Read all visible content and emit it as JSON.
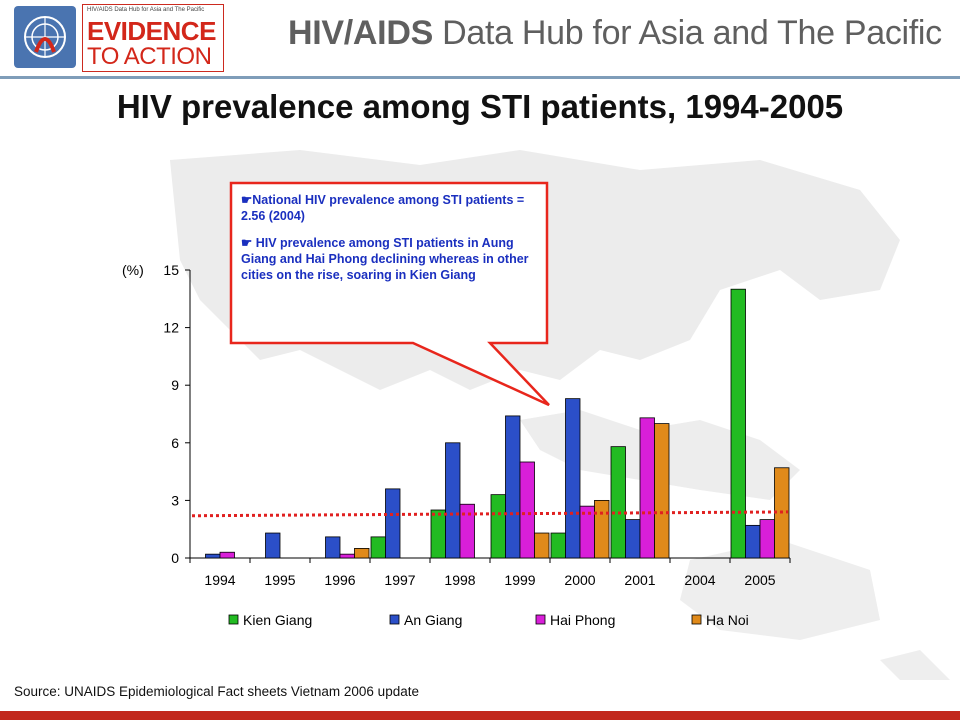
{
  "header": {
    "logo_small_text": "HIV/AIDS Data Hub for Asia and The Pacific",
    "logo_line1": "EVIDENCE",
    "logo_line2": "TO ACTION",
    "hub_bold": "HIV/AIDS",
    "hub_rest": " Data Hub for Asia and The Pacific"
  },
  "slide_title": "HIV prevalence among STI patients, 1994-2005",
  "callout": {
    "bullet_1": "National HIV prevalence among STI patients  = 2.56 (2004)",
    "bullet_2": " HIV prevalence among STI patients in Aung Giang and Hai Phong declining whereas in other cities on the rise, soaring in Kien Giang"
  },
  "source": "Source: UNAIDS Epidemiological Fact sheets Vietnam 2006 update",
  "chart_data": {
    "type": "bar",
    "title": "",
    "xlabel": "",
    "ylabel": "(%)",
    "ylim": [
      0,
      15
    ],
    "yticks": [
      0,
      3,
      6,
      9,
      12,
      15
    ],
    "categories": [
      "1994",
      "1995",
      "1996",
      "1997",
      "1998",
      "1999",
      "2000",
      "2001",
      "2004",
      "2005"
    ],
    "series": [
      {
        "name": "Kien Giang",
        "color": "#22bb22",
        "values": [
          null,
          null,
          null,
          1.1,
          2.5,
          3.3,
          1.3,
          5.8,
          null,
          14.0
        ]
      },
      {
        "name": "An Giang",
        "color": "#2b4fc8",
        "values": [
          0.2,
          1.3,
          1.1,
          3.6,
          6.0,
          7.4,
          8.3,
          2.0,
          null,
          1.7
        ]
      },
      {
        "name": "Hai Phong",
        "color": "#d91fd9",
        "values": [
          0.3,
          null,
          0.2,
          null,
          2.8,
          5.0,
          2.7,
          7.3,
          null,
          2.0
        ]
      },
      {
        "name": "Ha Noi",
        "color": "#e08a1a",
        "values": [
          null,
          null,
          0.5,
          null,
          null,
          1.3,
          3.0,
          7.0,
          null,
          4.7
        ]
      }
    ],
    "reference_line": {
      "from": 2.2,
      "to": 2.4,
      "color": "#e02020",
      "style": "dotted"
    },
    "grid": false,
    "legend_position": "bottom"
  }
}
